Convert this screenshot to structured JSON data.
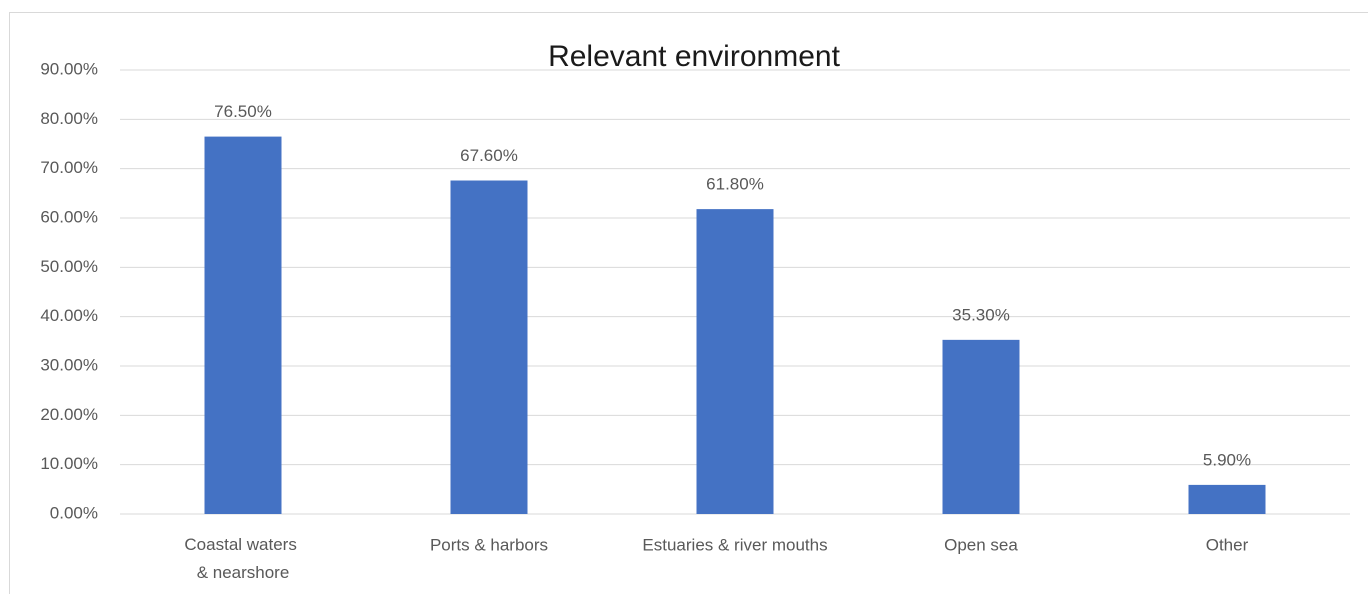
{
  "chart_data": {
    "type": "bar",
    "title": "Relevant environment",
    "categories": [
      "Coastal waters & nearshore",
      "Ports & harbors",
      "Estuaries & river mouths",
      "Open sea",
      "Other"
    ],
    "values": [
      76.5,
      67.6,
      61.8,
      35.3,
      5.9
    ],
    "value_labels": [
      "76.50%",
      "67.60%",
      "61.80%",
      "35.30%",
      "5.90%"
    ],
    "color": "#4472c4",
    "ylim": [
      0,
      90
    ],
    "yticks": [
      {
        "value": 0,
        "label": "0.00%"
      },
      {
        "value": 10,
        "label": "10.00%"
      },
      {
        "value": 20,
        "label": "20.00%"
      },
      {
        "value": 30,
        "label": "30.00%"
      },
      {
        "value": 40,
        "label": "40.00%"
      },
      {
        "value": 50,
        "label": "50.00%"
      },
      {
        "value": 60,
        "label": "60.00%"
      },
      {
        "value": 70,
        "label": "70.00%"
      },
      {
        "value": 80,
        "label": "80.00%"
      },
      {
        "value": 90,
        "label": "90.00%"
      }
    ],
    "grid": true
  }
}
